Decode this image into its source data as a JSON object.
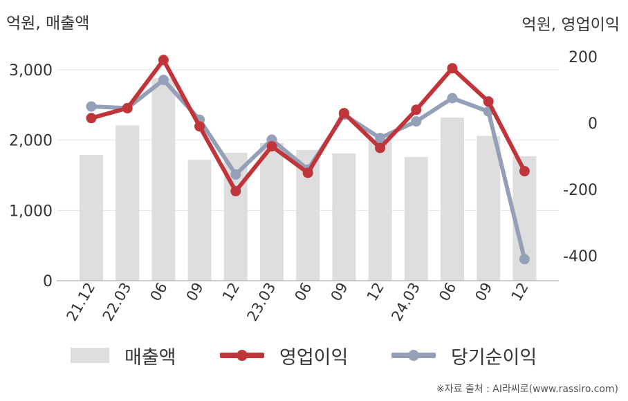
{
  "left_unit": "억원, 매출액",
  "right_unit": "억원, 영업이익",
  "source": "※자료 출처 : AI라씨로(www.rassiro.com)",
  "legend": {
    "revenue": "매출액",
    "operating": "영업이익",
    "net": "당기순이익"
  },
  "colors": {
    "bar": "#dedede",
    "operating": "#c0353a",
    "net": "#93a0b8",
    "grid": "#e6e6e6",
    "axis": "#bbbbbb",
    "text": "#333333"
  },
  "chart_data": {
    "type": "bar",
    "categories": [
      "21.12",
      "22.03",
      "06",
      "09",
      "12",
      "23.03",
      "06",
      "09",
      "12",
      "24.03",
      "06",
      "09",
      "12"
    ],
    "y_left": {
      "ylim": [
        0,
        3000
      ],
      "ticks": [
        0,
        1000,
        2000,
        3000
      ],
      "tick_labels": [
        "0",
        "1,000",
        "2,000",
        "3,000"
      ]
    },
    "y_right": {
      "ylim": [
        -450,
        200
      ],
      "ticks": [
        -400,
        -200,
        0,
        200
      ],
      "tick_labels": [
        "-400",
        "-200",
        "0",
        "200"
      ]
    },
    "grid": true,
    "legend_position": "bottom",
    "series": [
      {
        "name": "매출액",
        "type": "bar",
        "axis": "left",
        "values": [
          1790,
          2210,
          2880,
          1720,
          1820,
          1960,
          1860,
          1810,
          2010,
          1760,
          2320,
          2060,
          1770
        ]
      },
      {
        "name": "영업이익",
        "type": "line",
        "axis": "right",
        "values": [
          15,
          45,
          190,
          -10,
          -205,
          -70,
          -150,
          30,
          -75,
          40,
          165,
          65,
          -145
        ]
      },
      {
        "name": "당기순이익",
        "type": "line",
        "axis": "right",
        "values": [
          50,
          45,
          130,
          10,
          -155,
          -50,
          -140,
          25,
          -45,
          5,
          75,
          35,
          -410
        ]
      }
    ]
  }
}
